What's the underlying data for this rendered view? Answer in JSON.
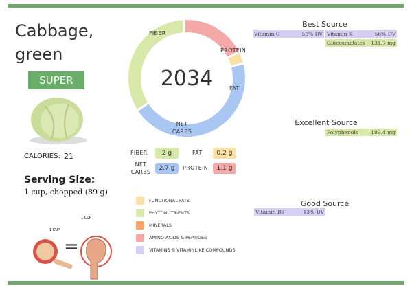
{
  "title": "Cabbage, green",
  "badge": "SUPER",
  "calories": {
    "label": "CALORIES:",
    "value": "21"
  },
  "serving": {
    "title": "Serving Size:",
    "amount": "1 cup, chopped  (89 g)"
  },
  "cup_labels": [
    "1 CUP",
    "1 CUP"
  ],
  "equals": "=",
  "donut": {
    "center": "2034",
    "segments": [
      {
        "name": "PROTEIN",
        "value": 1.1,
        "label": "1.1 g",
        "color": "#f4a8a8"
      },
      {
        "name": "FAT",
        "value": 0.2,
        "label": "0.2 g",
        "color": "#fbe1a6"
      },
      {
        "name": "NET CARBS",
        "value": 2.7,
        "label": "2.7 g",
        "color": "#a9c6f2"
      },
      {
        "name": "FIBER",
        "value": 2,
        "label": "2 g",
        "color": "#d8e8a8"
      }
    ]
  },
  "legend": [
    "FUNCTIONAL FATS",
    "PHYTONUTRIENTS",
    "MINERALS",
    "AMINO ACIDS & PEPTIDES",
    "VITAMINS & VITAMINLIKE COMPOUNDS"
  ],
  "sources": [
    {
      "title": "Best Source",
      "items": [
        {
          "name": "Vitamin C",
          "amount": "50% DV"
        },
        {
          "name": "Vitamin K",
          "amount": "56% DV"
        },
        {
          "name": "Glucosinolates",
          "amount": "131.7 mg"
        }
      ]
    },
    {
      "title": "Excellent Source",
      "items": [
        {
          "name": "Polyphenols",
          "amount": "199.4 mg"
        }
      ]
    },
    {
      "title": "Good Source",
      "items": [
        {
          "name": "Vitamin B9",
          "amount": "13% DV"
        }
      ]
    }
  ]
}
